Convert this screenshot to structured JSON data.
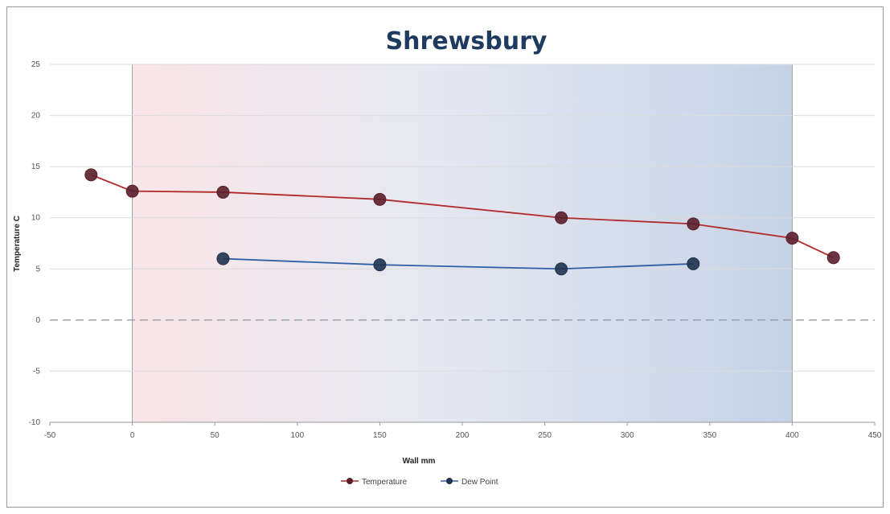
{
  "chart_data": {
    "type": "line",
    "title": "Shrewsbury",
    "xlabel": "Wall mm",
    "ylabel": "Temperature C",
    "xlim": [
      -50,
      450
    ],
    "ylim": [
      -10,
      25
    ],
    "x_ticks": [
      -50,
      0,
      50,
      100,
      150,
      200,
      250,
      300,
      350,
      400,
      450
    ],
    "y_ticks": [
      -10,
      -5,
      0,
      5,
      10,
      15,
      20,
      25
    ],
    "wall_region": [
      0,
      400
    ],
    "reference_line": {
      "y": 0,
      "style": "dashed"
    },
    "legend_position": "bottom",
    "series": [
      {
        "name": "Temperature",
        "color": "#b22a2a",
        "marker_color": "#5a1f2a",
        "x": [
          -25,
          0,
          55,
          150,
          260,
          340,
          400,
          425
        ],
        "y": [
          14.2,
          12.6,
          12.5,
          11.8,
          10.0,
          9.4,
          8.0,
          6.1
        ]
      },
      {
        "name": "Dew Point",
        "color": "#2f5fa8",
        "marker_color": "#1f3350",
        "x": [
          55,
          150,
          260,
          340
        ],
        "y": [
          6.0,
          5.4,
          5.0,
          5.5
        ]
      }
    ]
  }
}
